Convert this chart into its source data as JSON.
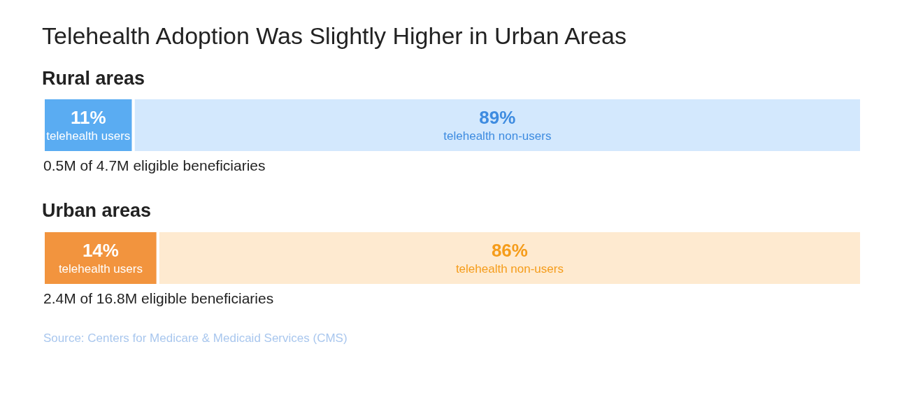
{
  "chart_data": [
    {
      "type": "bar",
      "orientation": "horizontal",
      "stacked": true,
      "title": "Telehealth Adoption Was Slightly Higher in Urban Areas",
      "subtitle": "Rural areas",
      "categories": [
        null
      ],
      "xlim": [
        0,
        100
      ],
      "tick_labels": false,
      "series": [
        {
          "name": "telehealth users",
          "color": "#5aacf2",
          "values": [
            11
          ],
          "value_labels": [
            "11%"
          ]
        },
        {
          "name": "telehealth non-users",
          "color": "#d3e8fd",
          "values": [
            89
          ],
          "value_labels": [
            "89%"
          ]
        }
      ],
      "annotations": [
        "0.5M of 4.7M eligible beneficiaries"
      ]
    },
    {
      "type": "bar",
      "orientation": "horizontal",
      "stacked": true,
      "title": "Urban areas",
      "categories": [
        null
      ],
      "xlim": [
        0,
        100
      ],
      "tick_labels": false,
      "series": [
        {
          "name": "telehealth users",
          "color": "#f2943e",
          "values": [
            14
          ],
          "value_labels": [
            "14%"
          ]
        },
        {
          "name": "telehealth non-users",
          "color": "#feead0",
          "values": [
            86
          ],
          "value_labels": [
            "86%"
          ]
        }
      ],
      "annotations": [
        "2.4M of 16.8M eligible beneficiaries",
        "Source: Centers for Medicare & Medicaid Services (CMS)"
      ]
    }
  ]
}
